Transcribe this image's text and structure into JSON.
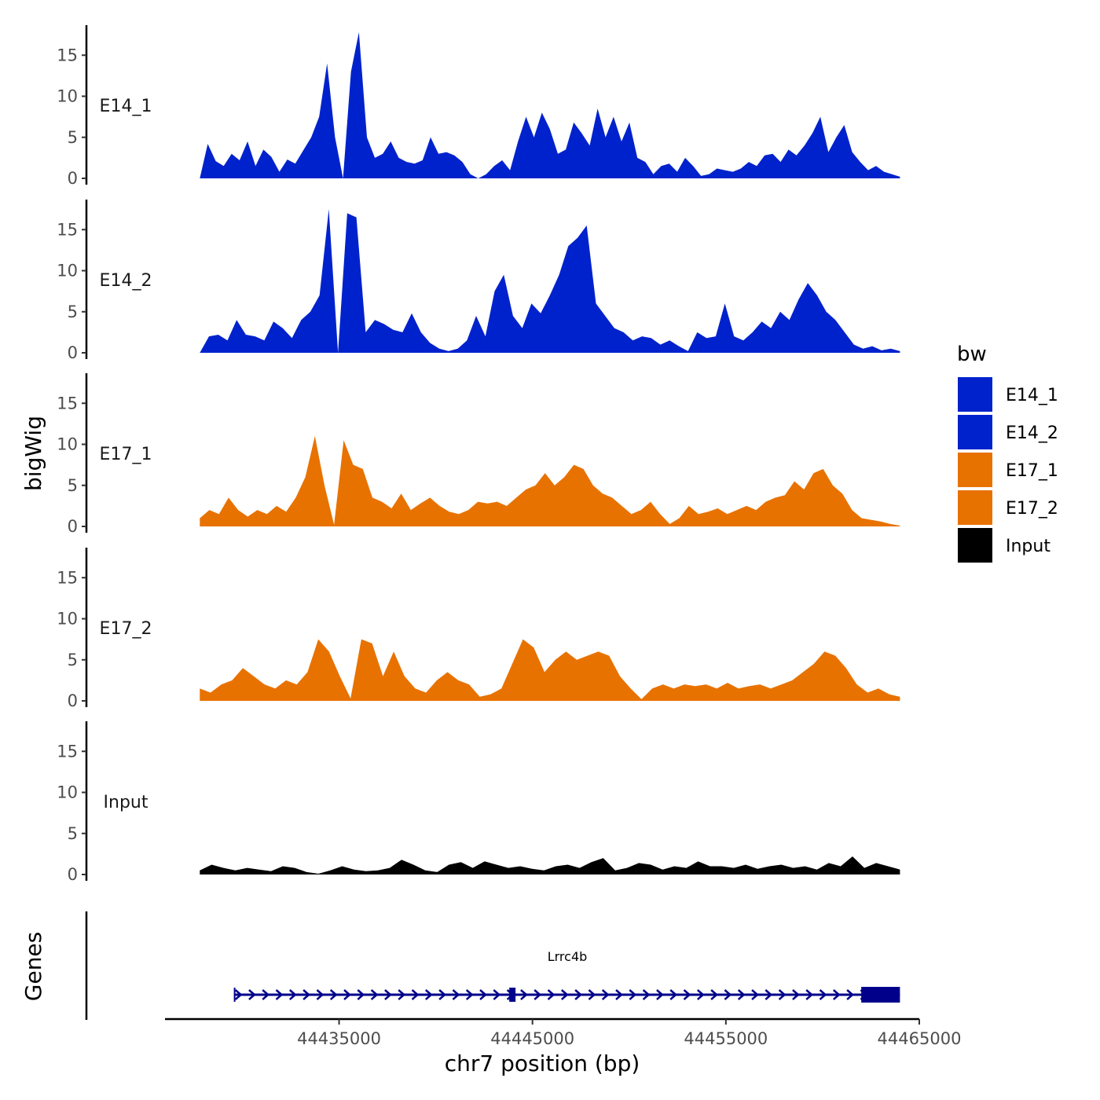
{
  "chart_data": {
    "type": "area",
    "y_axis_title": "bigWig",
    "x_axis_title": "chr7 position (bp)",
    "genes_axis_title": "Genes",
    "y_ticks": [
      "0",
      "5",
      "10",
      "15"
    ],
    "y_tick_values": [
      0,
      5,
      10,
      15
    ],
    "ylim": [
      0,
      18.5
    ],
    "x_ticks": [
      "44435000",
      "44445000",
      "44455000",
      "44465000"
    ],
    "x_tick_values": [
      44435000,
      44445000,
      44455000,
      44465000
    ],
    "xlim": [
      44426000,
      44465000
    ],
    "track_x_range": [
      44427800,
      44464000
    ],
    "legend": {
      "title": "bw",
      "placement": "right",
      "items": [
        {
          "label": "E14_1",
          "color": "#0022CC"
        },
        {
          "label": "E14_2",
          "color": "#0022CC"
        },
        {
          "label": "E17_1",
          "color": "#E87200"
        },
        {
          "label": "E17_2",
          "color": "#E87200"
        },
        {
          "label": "Input",
          "color": "#000000"
        }
      ]
    },
    "series": [
      {
        "name": "E14_1",
        "color": "#0022CC",
        "values": [
          0,
          4.2,
          2.1,
          1.5,
          3.0,
          2.2,
          4.5,
          1.5,
          3.5,
          2.6,
          0.8,
          2.3,
          1.8,
          3.4,
          5.0,
          7.5,
          14.0,
          5.0,
          0,
          13.0,
          17.8,
          5.0,
          2.5,
          3.0,
          4.5,
          2.5,
          2.0,
          1.8,
          2.2,
          5.0,
          3.0,
          3.2,
          2.8,
          2.0,
          0.5,
          0,
          0.5,
          1.5,
          2.2,
          1.0,
          4.5,
          7.5,
          5.0,
          8.0,
          6.0,
          3.0,
          3.5,
          6.8,
          5.5,
          4.0,
          8.5,
          5.0,
          7.5,
          4.5,
          6.8,
          2.5,
          2.0,
          0.5,
          1.5,
          1.8,
          0.8,
          2.5,
          1.5,
          0.3,
          0.5,
          1.2,
          1.0,
          0.8,
          1.2,
          2.0,
          1.5,
          2.8,
          3.0,
          2.0,
          3.5,
          2.8,
          4.0,
          5.5,
          7.5,
          3.2,
          5.0,
          6.5,
          3.2,
          2.0,
          1.0,
          1.5,
          0.8,
          0.5,
          0.2
        ]
      },
      {
        "name": "E14_2",
        "color": "#0022CC",
        "values": [
          0,
          2.0,
          2.2,
          1.5,
          4.0,
          2.2,
          2.0,
          1.5,
          3.8,
          3.0,
          1.8,
          4.0,
          5.0,
          7.0,
          17.5,
          0,
          17.0,
          16.5,
          2.5,
          4.0,
          3.5,
          2.8,
          2.5,
          4.8,
          2.5,
          1.2,
          0.5,
          0.2,
          0.5,
          1.5,
          4.5,
          2.0,
          7.5,
          9.5,
          4.5,
          3.0,
          6.0,
          4.8,
          7.0,
          9.5,
          13.0,
          14.0,
          15.5,
          6.0,
          4.5,
          3.0,
          2.5,
          1.5,
          2.0,
          1.8,
          1.0,
          1.5,
          0.8,
          0.2,
          2.5,
          1.8,
          2.0,
          6.0,
          2.0,
          1.5,
          2.5,
          3.8,
          3.0,
          5.0,
          4.0,
          6.5,
          8.5,
          7.0,
          5.0,
          4.0,
          2.5,
          1.0,
          0.5,
          0.8,
          0.3,
          0.5,
          0.2
        ]
      },
      {
        "name": "E17_1",
        "color": "#E87200",
        "values": [
          1.0,
          2.0,
          1.5,
          3.5,
          2.0,
          1.2,
          2.0,
          1.5,
          2.5,
          1.8,
          3.5,
          6.0,
          11.0,
          5.0,
          0.2,
          10.5,
          7.5,
          7.0,
          3.5,
          3.0,
          2.2,
          4.0,
          2.0,
          2.8,
          3.5,
          2.5,
          1.8,
          1.5,
          2.0,
          3.0,
          2.8,
          3.0,
          2.5,
          3.5,
          4.5,
          5.0,
          6.5,
          5.0,
          6.0,
          7.5,
          7.0,
          5.0,
          4.0,
          3.5,
          2.5,
          1.5,
          2.0,
          3.0,
          1.5,
          0.3,
          1.0,
          2.5,
          1.5,
          1.8,
          2.2,
          1.5,
          2.0,
          2.5,
          2.0,
          3.0,
          3.5,
          3.8,
          5.5,
          4.5,
          6.5,
          7.0,
          5.0,
          4.0,
          2.0,
          1.0,
          0.8,
          0.6,
          0.3,
          0.1
        ]
      },
      {
        "name": "E17_2",
        "color": "#E87200",
        "values": [
          1.5,
          1.0,
          2.0,
          2.5,
          4.0,
          3.0,
          2.0,
          1.5,
          2.5,
          2.0,
          3.5,
          7.5,
          6.0,
          3.0,
          0.3,
          7.5,
          7.0,
          3.0,
          6.0,
          3.0,
          1.5,
          1.0,
          2.5,
          3.5,
          2.5,
          2.0,
          0.5,
          0.8,
          1.5,
          4.5,
          7.5,
          6.5,
          3.5,
          5.0,
          6.0,
          5.0,
          5.5,
          6.0,
          5.5,
          3.0,
          1.5,
          0.2,
          1.5,
          2.0,
          1.5,
          2.0,
          1.8,
          2.0,
          1.5,
          2.2,
          1.5,
          1.8,
          2.0,
          1.5,
          2.0,
          2.5,
          3.5,
          4.5,
          6.0,
          5.5,
          4.0,
          2.0,
          1.0,
          1.5,
          0.8,
          0.5
        ]
      },
      {
        "name": "Input",
        "color": "#000000",
        "values": [
          0.5,
          1.2,
          0.8,
          0.5,
          0.8,
          0.6,
          0.4,
          1.0,
          0.8,
          0.3,
          0.1,
          0.5,
          1.0,
          0.6,
          0.4,
          0.5,
          0.8,
          1.8,
          1.2,
          0.5,
          0.3,
          1.2,
          1.5,
          0.8,
          1.6,
          1.2,
          0.8,
          1.0,
          0.7,
          0.5,
          1.0,
          1.2,
          0.8,
          1.5,
          2.0,
          0.5,
          0.8,
          1.4,
          1.2,
          0.6,
          1.0,
          0.8,
          1.6,
          1.0,
          1.0,
          0.8,
          1.2,
          0.7,
          1.0,
          1.2,
          0.8,
          1.0,
          0.6,
          1.4,
          1.0,
          2.2,
          0.8,
          1.4,
          1.0,
          0.6
        ]
      }
    ],
    "gene": {
      "name": "Lrrc4b",
      "strand": "+",
      "color": "#00008B",
      "start": 44429600,
      "end": 44464000,
      "exons": [
        [
          44443800,
          44444100
        ],
        [
          44462000,
          44464000
        ]
      ]
    }
  }
}
